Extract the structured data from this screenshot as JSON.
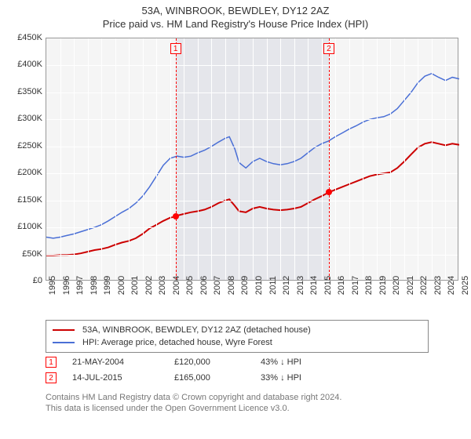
{
  "title": {
    "line1": "53A, WINBROOK, BEWDLEY, DY12 2AZ",
    "line2": "Price paid vs. HM Land Registry's House Price Index (HPI)"
  },
  "chart": {
    "type": "line",
    "background_color": "#f5f5f5",
    "grid_color": "#ffffff",
    "border_color": "#999999",
    "y": {
      "min": 0,
      "max": 450000,
      "step": 50000,
      "prefix": "£",
      "suffix": "K",
      "divisor": 1000
    },
    "x": {
      "min": 1995,
      "max": 2025,
      "step": 1
    },
    "highlight_band": {
      "start": 2004.39,
      "end": 2015.53,
      "color": "#e5e6eb"
    },
    "markers": [
      {
        "id": "1",
        "x": 2004.39,
        "box_y": 10000
      },
      {
        "id": "2",
        "x": 2015.53,
        "box_y": 10000
      }
    ],
    "marker_color": "#ff0000",
    "sale_points": [
      {
        "x": 2004.39,
        "y": 120000
      },
      {
        "x": 2015.53,
        "y": 165000
      }
    ],
    "series": [
      {
        "name": "property",
        "label": "53A, WINBROOK, BEWDLEY, DY12 2AZ (detached house)",
        "color": "#cc0000",
        "width": 2,
        "points": [
          [
            1995.0,
            48000
          ],
          [
            1995.5,
            48000
          ],
          [
            1996.0,
            49000
          ],
          [
            1996.5,
            49000
          ],
          [
            1997.0,
            50000
          ],
          [
            1997.5,
            52000
          ],
          [
            1998.0,
            55000
          ],
          [
            1998.5,
            58000
          ],
          [
            1999.0,
            60000
          ],
          [
            1999.5,
            63000
          ],
          [
            2000.0,
            68000
          ],
          [
            2000.5,
            72000
          ],
          [
            2001.0,
            75000
          ],
          [
            2001.5,
            80000
          ],
          [
            2002.0,
            88000
          ],
          [
            2002.5,
            98000
          ],
          [
            2003.0,
            105000
          ],
          [
            2003.5,
            112000
          ],
          [
            2004.0,
            118000
          ],
          [
            2004.39,
            120000
          ],
          [
            2004.5,
            122000
          ],
          [
            2005.0,
            125000
          ],
          [
            2005.5,
            128000
          ],
          [
            2006.0,
            130000
          ],
          [
            2006.5,
            133000
          ],
          [
            2007.0,
            138000
          ],
          [
            2007.5,
            145000
          ],
          [
            2008.0,
            150000
          ],
          [
            2008.3,
            152000
          ],
          [
            2008.7,
            140000
          ],
          [
            2009.0,
            130000
          ],
          [
            2009.5,
            128000
          ],
          [
            2010.0,
            135000
          ],
          [
            2010.5,
            138000
          ],
          [
            2011.0,
            135000
          ],
          [
            2011.5,
            133000
          ],
          [
            2012.0,
            132000
          ],
          [
            2012.5,
            133000
          ],
          [
            2013.0,
            135000
          ],
          [
            2013.5,
            138000
          ],
          [
            2014.0,
            145000
          ],
          [
            2014.5,
            152000
          ],
          [
            2015.0,
            158000
          ],
          [
            2015.53,
            165000
          ],
          [
            2016.0,
            170000
          ],
          [
            2016.5,
            175000
          ],
          [
            2017.0,
            180000
          ],
          [
            2017.5,
            185000
          ],
          [
            2018.0,
            190000
          ],
          [
            2018.5,
            195000
          ],
          [
            2019.0,
            198000
          ],
          [
            2019.5,
            200000
          ],
          [
            2020.0,
            202000
          ],
          [
            2020.5,
            210000
          ],
          [
            2021.0,
            222000
          ],
          [
            2021.5,
            235000
          ],
          [
            2022.0,
            248000
          ],
          [
            2022.5,
            255000
          ],
          [
            2023.0,
            258000
          ],
          [
            2023.5,
            255000
          ],
          [
            2024.0,
            252000
          ],
          [
            2024.5,
            255000
          ],
          [
            2025.0,
            253000
          ]
        ]
      },
      {
        "name": "hpi",
        "label": "HPI: Average price, detached house, Wyre Forest",
        "color": "#4a6fd6",
        "width": 1.5,
        "points": [
          [
            1995.0,
            82000
          ],
          [
            1995.5,
            80000
          ],
          [
            1996.0,
            82000
          ],
          [
            1996.5,
            85000
          ],
          [
            1997.0,
            88000
          ],
          [
            1997.5,
            92000
          ],
          [
            1998.0,
            96000
          ],
          [
            1998.5,
            100000
          ],
          [
            1999.0,
            105000
          ],
          [
            1999.5,
            112000
          ],
          [
            2000.0,
            120000
          ],
          [
            2000.5,
            128000
          ],
          [
            2001.0,
            135000
          ],
          [
            2001.5,
            145000
          ],
          [
            2002.0,
            158000
          ],
          [
            2002.5,
            175000
          ],
          [
            2003.0,
            195000
          ],
          [
            2003.5,
            215000
          ],
          [
            2004.0,
            228000
          ],
          [
            2004.5,
            232000
          ],
          [
            2005.0,
            230000
          ],
          [
            2005.5,
            232000
          ],
          [
            2006.0,
            238000
          ],
          [
            2006.5,
            243000
          ],
          [
            2007.0,
            250000
          ],
          [
            2007.5,
            258000
          ],
          [
            2008.0,
            265000
          ],
          [
            2008.3,
            268000
          ],
          [
            2008.7,
            245000
          ],
          [
            2009.0,
            220000
          ],
          [
            2009.5,
            210000
          ],
          [
            2010.0,
            222000
          ],
          [
            2010.5,
            228000
          ],
          [
            2011.0,
            222000
          ],
          [
            2011.5,
            218000
          ],
          [
            2012.0,
            216000
          ],
          [
            2012.5,
            218000
          ],
          [
            2013.0,
            222000
          ],
          [
            2013.5,
            228000
          ],
          [
            2014.0,
            238000
          ],
          [
            2014.5,
            248000
          ],
          [
            2015.0,
            255000
          ],
          [
            2015.5,
            260000
          ],
          [
            2016.0,
            268000
          ],
          [
            2016.5,
            275000
          ],
          [
            2017.0,
            282000
          ],
          [
            2017.5,
            288000
          ],
          [
            2018.0,
            295000
          ],
          [
            2018.5,
            300000
          ],
          [
            2019.0,
            303000
          ],
          [
            2019.5,
            305000
          ],
          [
            2020.0,
            310000
          ],
          [
            2020.5,
            320000
          ],
          [
            2021.0,
            335000
          ],
          [
            2021.5,
            350000
          ],
          [
            2022.0,
            368000
          ],
          [
            2022.5,
            380000
          ],
          [
            2023.0,
            385000
          ],
          [
            2023.5,
            378000
          ],
          [
            2024.0,
            372000
          ],
          [
            2024.5,
            378000
          ],
          [
            2025.0,
            375000
          ]
        ]
      }
    ]
  },
  "legend": {
    "items": [
      {
        "color": "#cc0000",
        "label": "53A, WINBROOK, BEWDLEY, DY12 2AZ (detached house)"
      },
      {
        "color": "#4a6fd6",
        "label": "HPI: Average price, detached house, Wyre Forest"
      }
    ]
  },
  "sales": [
    {
      "id": "1",
      "date": "21-MAY-2004",
      "price": "£120,000",
      "delta": "43%  ↓  HPI"
    },
    {
      "id": "2",
      "date": "14-JUL-2015",
      "price": "£165,000",
      "delta": "33%  ↓  HPI"
    }
  ],
  "footer": {
    "line1": "Contains HM Land Registry data © Crown copyright and database right 2024.",
    "line2": "This data is licensed under the Open Government Licence v3.0."
  }
}
